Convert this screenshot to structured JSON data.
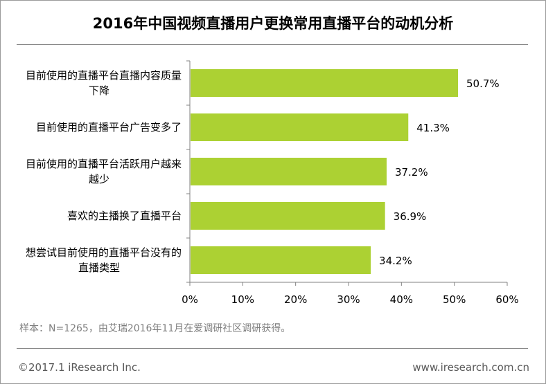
{
  "colors": {
    "bar": "#acd133",
    "axis": "#808080",
    "text": "#000000"
  },
  "chart_data": {
    "type": "bar",
    "orientation": "horizontal",
    "title": "2016年中国视频直播用户更换常用直播平台的动机分析",
    "categories": [
      [
        "目前使用的直播平台直播内容质量",
        "下降"
      ],
      [
        "目前使用的直播平台广告变多了"
      ],
      [
        "目前使用的直播平台活跃用户越来",
        "越少"
      ],
      [
        "喜欢的主播换了直播平台"
      ],
      [
        "想尝试目前使用的直播平台没有的",
        "直播类型"
      ]
    ],
    "values": [
      50.7,
      41.3,
      37.2,
      36.9,
      34.2
    ],
    "value_labels": [
      "50.7%",
      "41.3%",
      "37.2%",
      "36.9%",
      "34.2%"
    ],
    "xlim": [
      0,
      60
    ],
    "xticks": [
      "0%",
      "10%",
      "20%",
      "30%",
      "40%",
      "50%",
      "60%"
    ],
    "grid": false,
    "legend": "none"
  },
  "note": "样本：N=1265，由艾瑞2016年11月在爱调研社区调研获得。",
  "footer": {
    "copyright": "©2017.1 iResearch Inc.",
    "website": "www.iresearch.com.cn"
  }
}
